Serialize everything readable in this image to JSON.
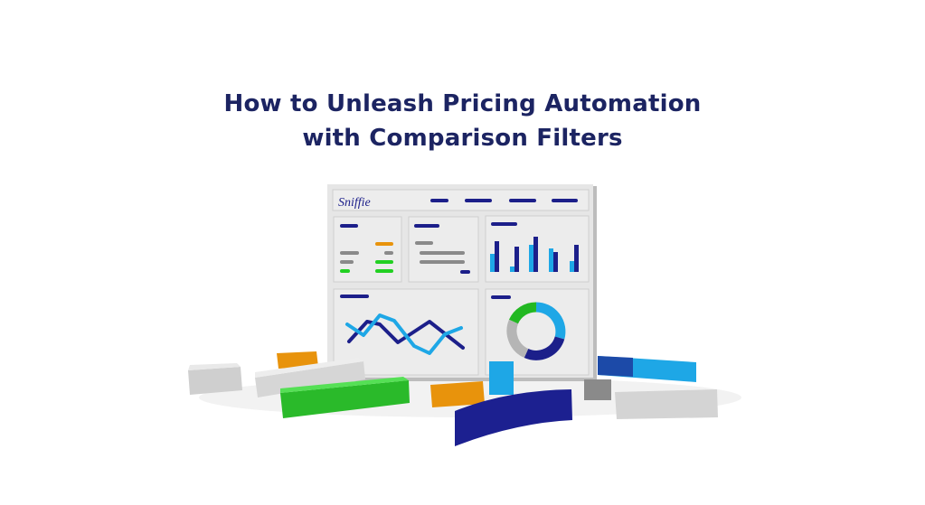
{
  "title": {
    "line1": "How to Unleash Pricing Automation",
    "line2": "with Comparison Filters"
  },
  "illustration": {
    "logo_text": "Sniffie",
    "colors": {
      "navy": "#1c1f8a",
      "sky": "#1ea7e6",
      "green": "#22d022",
      "orange": "#e8930c",
      "gray": "#8a8a8a",
      "board": "#e8e8e8"
    },
    "icons": [
      "dashboard-board",
      "bar-chart",
      "line-chart",
      "donut-chart",
      "3d-blocks"
    ]
  }
}
